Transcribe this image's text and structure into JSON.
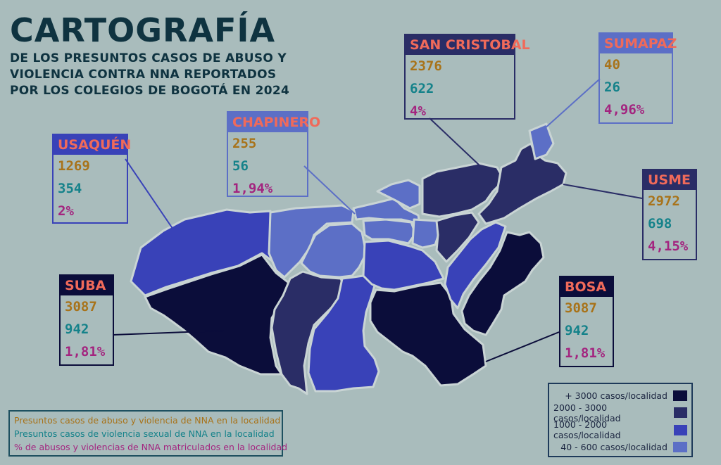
{
  "title": "CARTOGRAFÍA",
  "subtitle_lines": [
    "DE LOS PRESUNTOS CASOS DE ABUSO Y",
    "VIOLENCIA CONTRA NNA REPORTADOS",
    "POR LOS COLEGIOS DE BOGOTÁ EN 2024"
  ],
  "colors": {
    "background": "#a9bcbc",
    "tier1": "#0b0d3a",
    "tier2": "#2a2d66",
    "tier3": "#3942b8",
    "tier4": "#5c6fc6",
    "header_text": "#f06a5a",
    "abuse": "#a8731a",
    "sexual": "#15828a",
    "percent": "#a3247f"
  },
  "localities": {
    "usaquen": {
      "name": "USAQUÉN",
      "abuse": "1269",
      "sexual": "354",
      "percent": "2%"
    },
    "chapinero": {
      "name": "CHAPINERO",
      "abuse": "255",
      "sexual": "56",
      "percent": "1,94%"
    },
    "san_cristobal": {
      "name": "SAN CRISTOBAL",
      "abuse": "2376",
      "sexual": "622",
      "percent": "4%"
    },
    "sumapaz": {
      "name": "SUMAPAZ",
      "abuse": "40",
      "sexual": "26",
      "percent": "4,96%"
    },
    "usme": {
      "name": "USME",
      "abuse": "2972",
      "sexual": "698",
      "percent": "4,15%"
    },
    "suba": {
      "name": "SUBA",
      "abuse": "3087",
      "sexual": "942",
      "percent": "1,81%"
    },
    "bosa": {
      "name": "BOSA",
      "abuse": "3087",
      "sexual": "942",
      "percent": "1,81%"
    }
  },
  "legend_left": [
    "Presuntos casos de abuso y violencia de NNA en la localidad",
    "Presuntos casos de violencia sexual de NNA en la localidad",
    "% de abusos y violencias de NNA matriculados en la localidad"
  ],
  "legend_right": [
    {
      "label": "+ 3000 casos/localidad",
      "color": "#0b0d3a"
    },
    {
      "label": "2000 - 3000 casos/localidad",
      "color": "#2a2d66"
    },
    {
      "label": "1000 - 2000 casos/localidad",
      "color": "#3942b8"
    },
    {
      "label": "40 - 600 casos/localidad",
      "color": "#5c6fc6"
    }
  ]
}
